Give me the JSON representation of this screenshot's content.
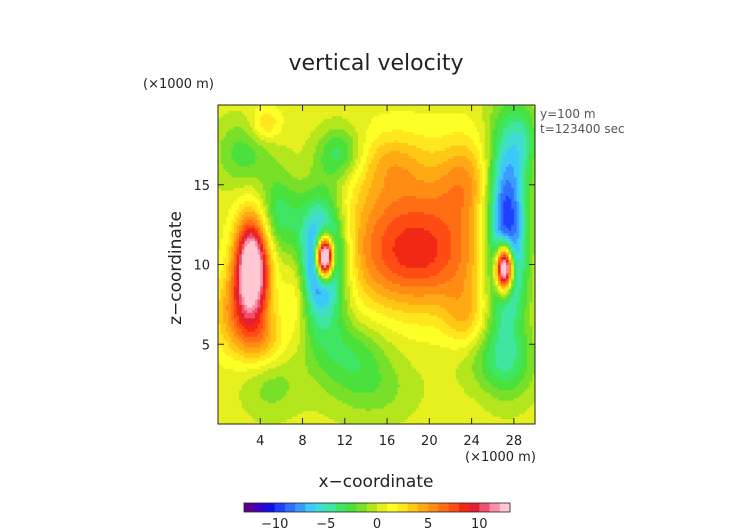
{
  "chart_data": {
    "type": "heatmap",
    "title": "vertical velocity",
    "xlabel": "x−coordinate",
    "ylabel": "z−coordinate",
    "x_unit": "(×1000 m)",
    "y_unit": "(×1000 m)",
    "info": [
      "y=100 m",
      "t=123400 sec"
    ],
    "xlim": [
      0,
      30
    ],
    "ylim": [
      0,
      20
    ],
    "x_ticks": [
      4,
      8,
      12,
      16,
      20,
      24,
      28
    ],
    "y_ticks": [
      5,
      10,
      15
    ],
    "x_ticklabels": [
      "4",
      "8",
      "12",
      "16",
      "20",
      "24",
      "28"
    ],
    "y_ticklabels": [
      "5",
      "10",
      "15"
    ],
    "colorbar": {
      "range": [
        -13,
        13
      ],
      "ticks": [
        -10,
        -5,
        0,
        5,
        10
      ],
      "ticklabels": [
        "−10",
        "−5",
        "0",
        "5",
        "10"
      ],
      "colors": [
        "#5a008c",
        "#3a00c8",
        "#1010e6",
        "#1e40ff",
        "#2f70ff",
        "#3a9cff",
        "#3cc8f8",
        "#40dcd2",
        "#3ee6a0",
        "#3ee664",
        "#4ae13c",
        "#78e028",
        "#b4e61e",
        "#e6f01e",
        "#ffff28",
        "#ffe61e",
        "#ffc814",
        "#ffaa14",
        "#ff8c14",
        "#ff6e14",
        "#ff4b14",
        "#f02814",
        "#e61e32",
        "#f0506e",
        "#fa91a5",
        "#ffc8d2"
      ]
    },
    "field": {
      "background": 0.5,
      "features": [
        {
          "x": 3.2,
          "z": 10.0,
          "sx": 1.1,
          "sz": 2.1,
          "amp": 15
        },
        {
          "x": 2.2,
          "z": 7.0,
          "sx": 1.8,
          "sz": 1.8,
          "amp": 5
        },
        {
          "x": 4.2,
          "z": 5.2,
          "sx": 1.5,
          "sz": 1.2,
          "amp": 3
        },
        {
          "x": 9.8,
          "z": 10.3,
          "sx": 1.6,
          "sz": 2.8,
          "amp": -12
        },
        {
          "x": 10.1,
          "z": 10.5,
          "sx": 0.55,
          "sz": 0.9,
          "amp": 26
        },
        {
          "x": 27.3,
          "z": 12.3,
          "sx": 1.4,
          "sz": 4.3,
          "amp": -12
        },
        {
          "x": 27.1,
          "z": 9.8,
          "sx": 0.55,
          "sz": 1.0,
          "amp": 22
        },
        {
          "x": 18.5,
          "z": 12.2,
          "sx": 5.0,
          "sz": 3.2,
          "amp": 6
        },
        {
          "x": 19.0,
          "z": 10.0,
          "sx": 4.5,
          "sz": 2.0,
          "amp": 3
        },
        {
          "x": 16.5,
          "z": 16.5,
          "sx": 2.0,
          "sz": 1.3,
          "amp": 2
        },
        {
          "x": 23.5,
          "z": 15.5,
          "sx": 1.8,
          "sz": 1.8,
          "amp": 3
        },
        {
          "x": 5.8,
          "z": 13.2,
          "sx": 1.4,
          "sz": 1.8,
          "amp": -4
        },
        {
          "x": 2.5,
          "z": 17.0,
          "sx": 2.0,
          "sz": 1.5,
          "amp": -3
        },
        {
          "x": 4.5,
          "z": 18.8,
          "sx": 1.0,
          "sz": 0.8,
          "amp": 3
        },
        {
          "x": 7.5,
          "z": 8.5,
          "sx": 0.8,
          "sz": 2.0,
          "amp": 3
        },
        {
          "x": 12.5,
          "z": 4.5,
          "sx": 2.5,
          "sz": 1.5,
          "amp": -3
        },
        {
          "x": 14.5,
          "z": 2.2,
          "sx": 3.0,
          "sz": 1.5,
          "amp": -2
        },
        {
          "x": 5.0,
          "z": 2.5,
          "sx": 2.0,
          "sz": 1.5,
          "amp": -2
        },
        {
          "x": 23.5,
          "z": 6.5,
          "sx": 1.5,
          "sz": 1.5,
          "amp": 3
        },
        {
          "x": 25.5,
          "z": 4.5,
          "sx": 2.5,
          "sz": 1.5,
          "amp": -2
        },
        {
          "x": 11.5,
          "z": 17.0,
          "sx": 1.5,
          "sz": 1.2,
          "amp": -4
        },
        {
          "x": 27.5,
          "z": 3.5,
          "sx": 2.0,
          "sz": 1.5,
          "amp": -2
        },
        {
          "x": 29.0,
          "z": 18.0,
          "sx": 1.0,
          "sz": 1.5,
          "amp": -3
        }
      ]
    }
  }
}
